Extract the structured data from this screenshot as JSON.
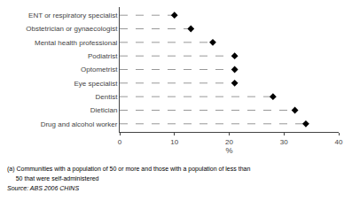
{
  "chart_data": {
    "type": "lollipop",
    "orientation": "horizontal",
    "categories": [
      "Drug and alcohol worker",
      "Dietician",
      "Dentist",
      "Eye specialist",
      "Optometrist",
      "Podiatrist",
      "Mental health professional",
      "Obstetrician or gynaecologist",
      "ENT or respiratory specialist"
    ],
    "values": [
      34.0,
      32.0,
      28.0,
      21.0,
      21.0,
      21.0,
      17.0,
      13.0,
      10.0
    ],
    "xlim": [
      0,
      40
    ],
    "xticks": [
      0,
      10,
      20,
      30,
      40
    ],
    "xlabel": "%",
    "color": "#000000",
    "marker": "diamond",
    "line_style": "dash",
    "grid": false,
    "annotations": [
      "(a) Communities with a population of 50 or more and those with a population of less than",
      "     50 that were self-administered",
      "Source: ABS 2006 CHINS"
    ]
  }
}
